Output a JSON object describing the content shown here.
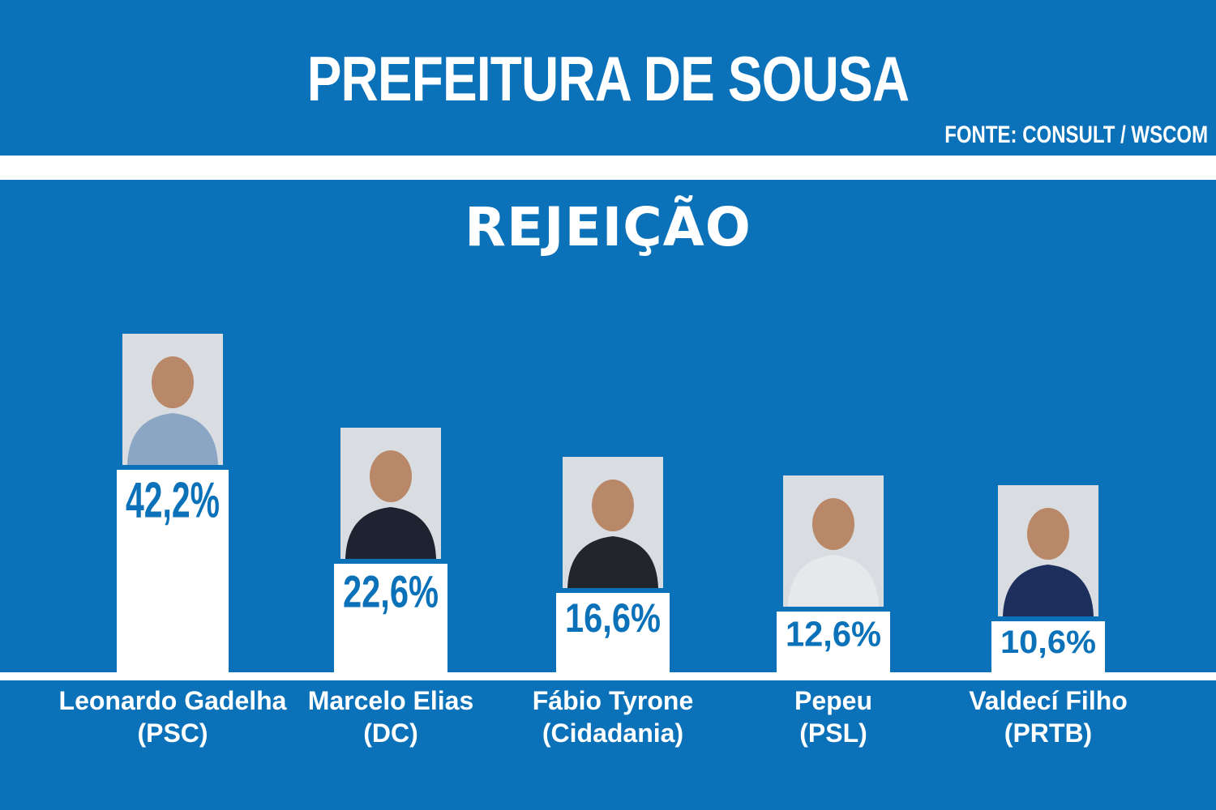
{
  "header": {
    "title": "PREFEITURA DE SOUSA",
    "source": "FONTE: CONSULT / WSCOM"
  },
  "colors": {
    "background": "#0b72ba",
    "bar": "#ffffff",
    "value_text": "#0b72ba"
  },
  "chart_data": {
    "type": "bar",
    "title": "REJEIÇÃO",
    "categories": [
      [
        "Leonardo Gadelha",
        "(PSC)"
      ],
      [
        "Marcelo Elias",
        "(DC)"
      ],
      [
        "Fábio Tyrone",
        "(Cidadania)"
      ],
      [
        "Pepeu",
        "(PSL)"
      ],
      [
        "Valdecí Filho",
        "(PRTB)"
      ]
    ],
    "values": [
      42.2,
      22.6,
      16.6,
      12.6,
      10.6
    ],
    "value_labels": [
      "42,2%",
      "22,6%",
      "16,6%",
      "12,6%",
      "10,6%"
    ],
    "ylim": [
      0,
      42.2
    ],
    "grid": false,
    "legend": "none"
  }
}
